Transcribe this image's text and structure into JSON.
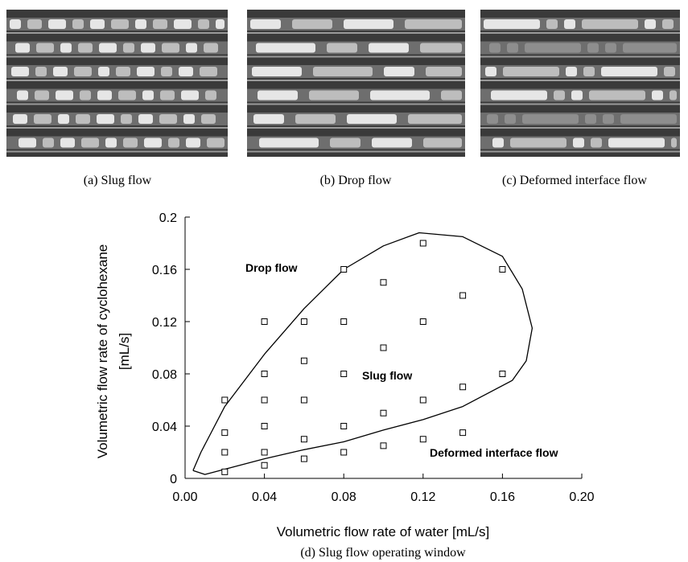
{
  "panels": [
    {
      "caption": "(a) Slug flow"
    },
    {
      "caption": "(b) Drop flow"
    },
    {
      "caption": "(c)   Deformed interface flow"
    }
  ],
  "chart_data": {
    "type": "scatter",
    "caption": "(d) Slug flow operating window",
    "xlabel": "Volumetric flow rate of water [mL/s]",
    "ylabel": [
      "Volumetric flow rate of cyclohexane",
      "[mL/s]"
    ],
    "annotations": [
      "Drop flow",
      "Slug flow",
      "Deformed interface flow"
    ],
    "xlim": [
      0,
      0.2
    ],
    "ylim": [
      0,
      0.2
    ],
    "xticks": [
      {
        "value": 0,
        "label": "0.00"
      },
      0.04,
      0.08,
      0.12,
      0.16,
      {
        "value": 0.2,
        "label": "0.20"
      }
    ],
    "yticks": [
      0,
      0.04,
      0.08,
      0.12,
      0.16,
      0.2
    ],
    "color": "#000000",
    "x": [
      0.02,
      0.02,
      0.02,
      0.02,
      0.04,
      0.04,
      0.04,
      0.04,
      0.04,
      0.04,
      0.06,
      0.06,
      0.06,
      0.06,
      0.06,
      0.08,
      0.08,
      0.08,
      0.08,
      0.08,
      0.1,
      0.1,
      0.1,
      0.1,
      0.12,
      0.12,
      0.12,
      0.12,
      0.14,
      0.14,
      0.14,
      0.16,
      0.16
    ],
    "y": [
      0.005,
      0.02,
      0.035,
      0.06,
      0.01,
      0.02,
      0.04,
      0.06,
      0.08,
      0.12,
      0.015,
      0.03,
      0.06,
      0.09,
      0.12,
      0.02,
      0.04,
      0.08,
      0.12,
      0.16,
      0.025,
      0.05,
      0.1,
      0.15,
      0.03,
      0.06,
      0.12,
      0.18,
      0.035,
      0.07,
      0.14,
      0.08,
      0.16
    ],
    "boundary": {
      "x": [
        0.004,
        0.008,
        0.02,
        0.04,
        0.06,
        0.08,
        0.1,
        0.118,
        0.14,
        0.16,
        0.17,
        0.175,
        0.172,
        0.165,
        0.14,
        0.12,
        0.1,
        0.08,
        0.06,
        0.04,
        0.02,
        0.01,
        0.004
      ],
      "y": [
        0.006,
        0.02,
        0.055,
        0.095,
        0.13,
        0.16,
        0.178,
        0.188,
        0.185,
        0.17,
        0.145,
        0.115,
        0.09,
        0.075,
        0.055,
        0.045,
        0.037,
        0.028,
        0.022,
        0.015,
        0.007,
        0.003,
        0.006
      ]
    }
  }
}
